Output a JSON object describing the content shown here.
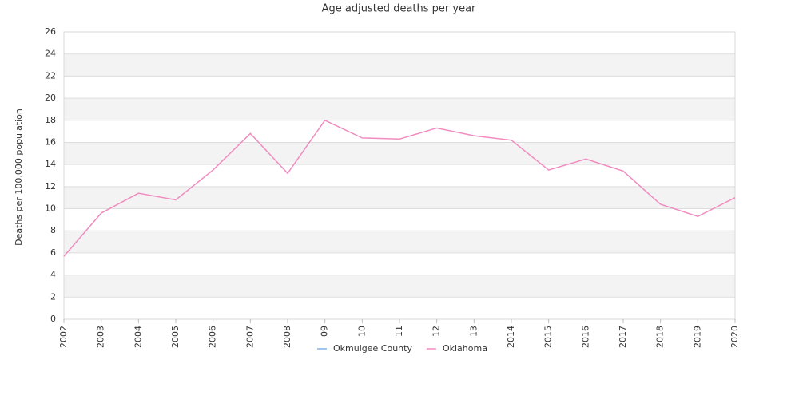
{
  "chart_data": {
    "type": "line",
    "title": "Age adjusted deaths per year",
    "y_label": "Deaths per 100,000 population",
    "categories": [
      "2002",
      "2003",
      "2004",
      "2005",
      "2006",
      "2007",
      "2008",
      "09",
      "10",
      "11",
      "12",
      "13",
      "2014",
      "2015",
      "2016",
      "2017",
      "2018",
      "2019",
      "2020"
    ],
    "series": [
      {
        "name": "Okmulgee County",
        "color": "#7fb2e5",
        "values": [
          null,
          null,
          null,
          null,
          null,
          null,
          null,
          null,
          null,
          null,
          null,
          null,
          null,
          null,
          null,
          null,
          null,
          null,
          null
        ]
      },
      {
        "name": "Oklahoma",
        "color": "#f08cc0",
        "values": [
          5.7,
          9.6,
          11.4,
          10.8,
          13.5,
          16.8,
          13.2,
          18.0,
          16.4,
          16.3,
          17.3,
          16.6,
          16.2,
          13.5,
          14.5,
          13.4,
          10.4,
          9.3,
          11.0
        ]
      }
    ],
    "ylim": [
      0,
      26
    ],
    "yticks": [
      0,
      2,
      4,
      6,
      8,
      10,
      12,
      14,
      16,
      18,
      20,
      22,
      24,
      26
    ],
    "grid": true
  }
}
